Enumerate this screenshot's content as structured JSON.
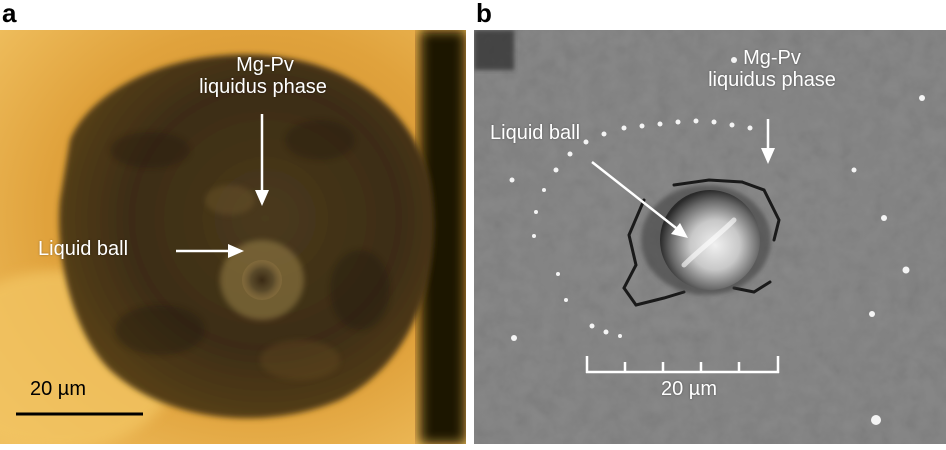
{
  "panel_a": {
    "letter": "a",
    "label_phase_line1": "Mg-Pv",
    "label_phase_line2": "liquidus phase",
    "label_ball": "Liquid ball",
    "scale_label": "20 µm"
  },
  "panel_b": {
    "letter": "b",
    "label_phase_line1": "Mg-Pv",
    "label_phase_line2": "liquidus phase",
    "label_ball": "Liquid ball",
    "scale_label": "20 µm"
  },
  "colors": {
    "optical_bright": "#e2a23a",
    "optical_dark": "#3a2a10",
    "sem_gray": "#8a8a8a",
    "annotation": "#ffffff"
  }
}
